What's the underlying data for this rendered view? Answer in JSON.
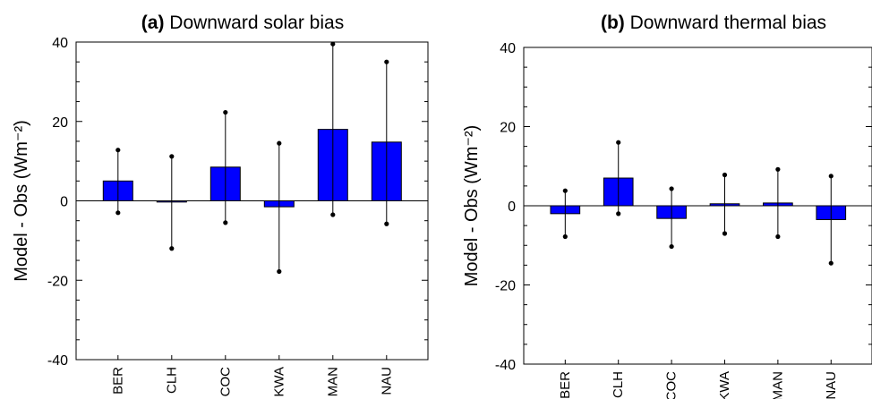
{
  "chart_data": [
    {
      "type": "bar",
      "title_prefix": "(a)",
      "title": "Downward solar bias",
      "xlabel": "",
      "ylabel": "Model - Obs (Wm⁻²)",
      "ylim": [
        -40,
        40
      ],
      "yticks": [
        -40,
        -20,
        0,
        20,
        40
      ],
      "grid": false,
      "legend": "none",
      "categories": [
        "BER",
        "CLH",
        "COC",
        "KWA",
        "MAN",
        "NAU"
      ],
      "values": [
        5.0,
        -0.3,
        8.5,
        -1.5,
        18.0,
        14.8
      ],
      "error_low": [
        -3.0,
        -12.0,
        -5.5,
        -17.8,
        -3.5,
        -5.8
      ],
      "error_high": [
        12.8,
        11.2,
        22.3,
        14.5,
        39.5,
        35.0
      ],
      "bar_color": "#0000ff"
    },
    {
      "type": "bar",
      "title_prefix": "(b)",
      "title": "Downward thermal bias",
      "xlabel": "",
      "ylabel": "Model - Obs (Wm⁻²)",
      "ylim": [
        -40,
        40
      ],
      "yticks": [
        -40,
        -20,
        0,
        20,
        40
      ],
      "grid": false,
      "legend": "none",
      "categories": [
        "BER",
        "CLH",
        "COC",
        "KWA",
        "MAN",
        "NAU"
      ],
      "values": [
        -2.0,
        7.0,
        -3.2,
        0.5,
        0.7,
        -3.5
      ],
      "error_low": [
        -7.8,
        -2.0,
        -10.3,
        -7.0,
        -7.8,
        -14.5
      ],
      "error_high": [
        3.8,
        16.0,
        4.3,
        7.8,
        9.2,
        7.5
      ],
      "bar_color": "#0000ff"
    }
  ]
}
